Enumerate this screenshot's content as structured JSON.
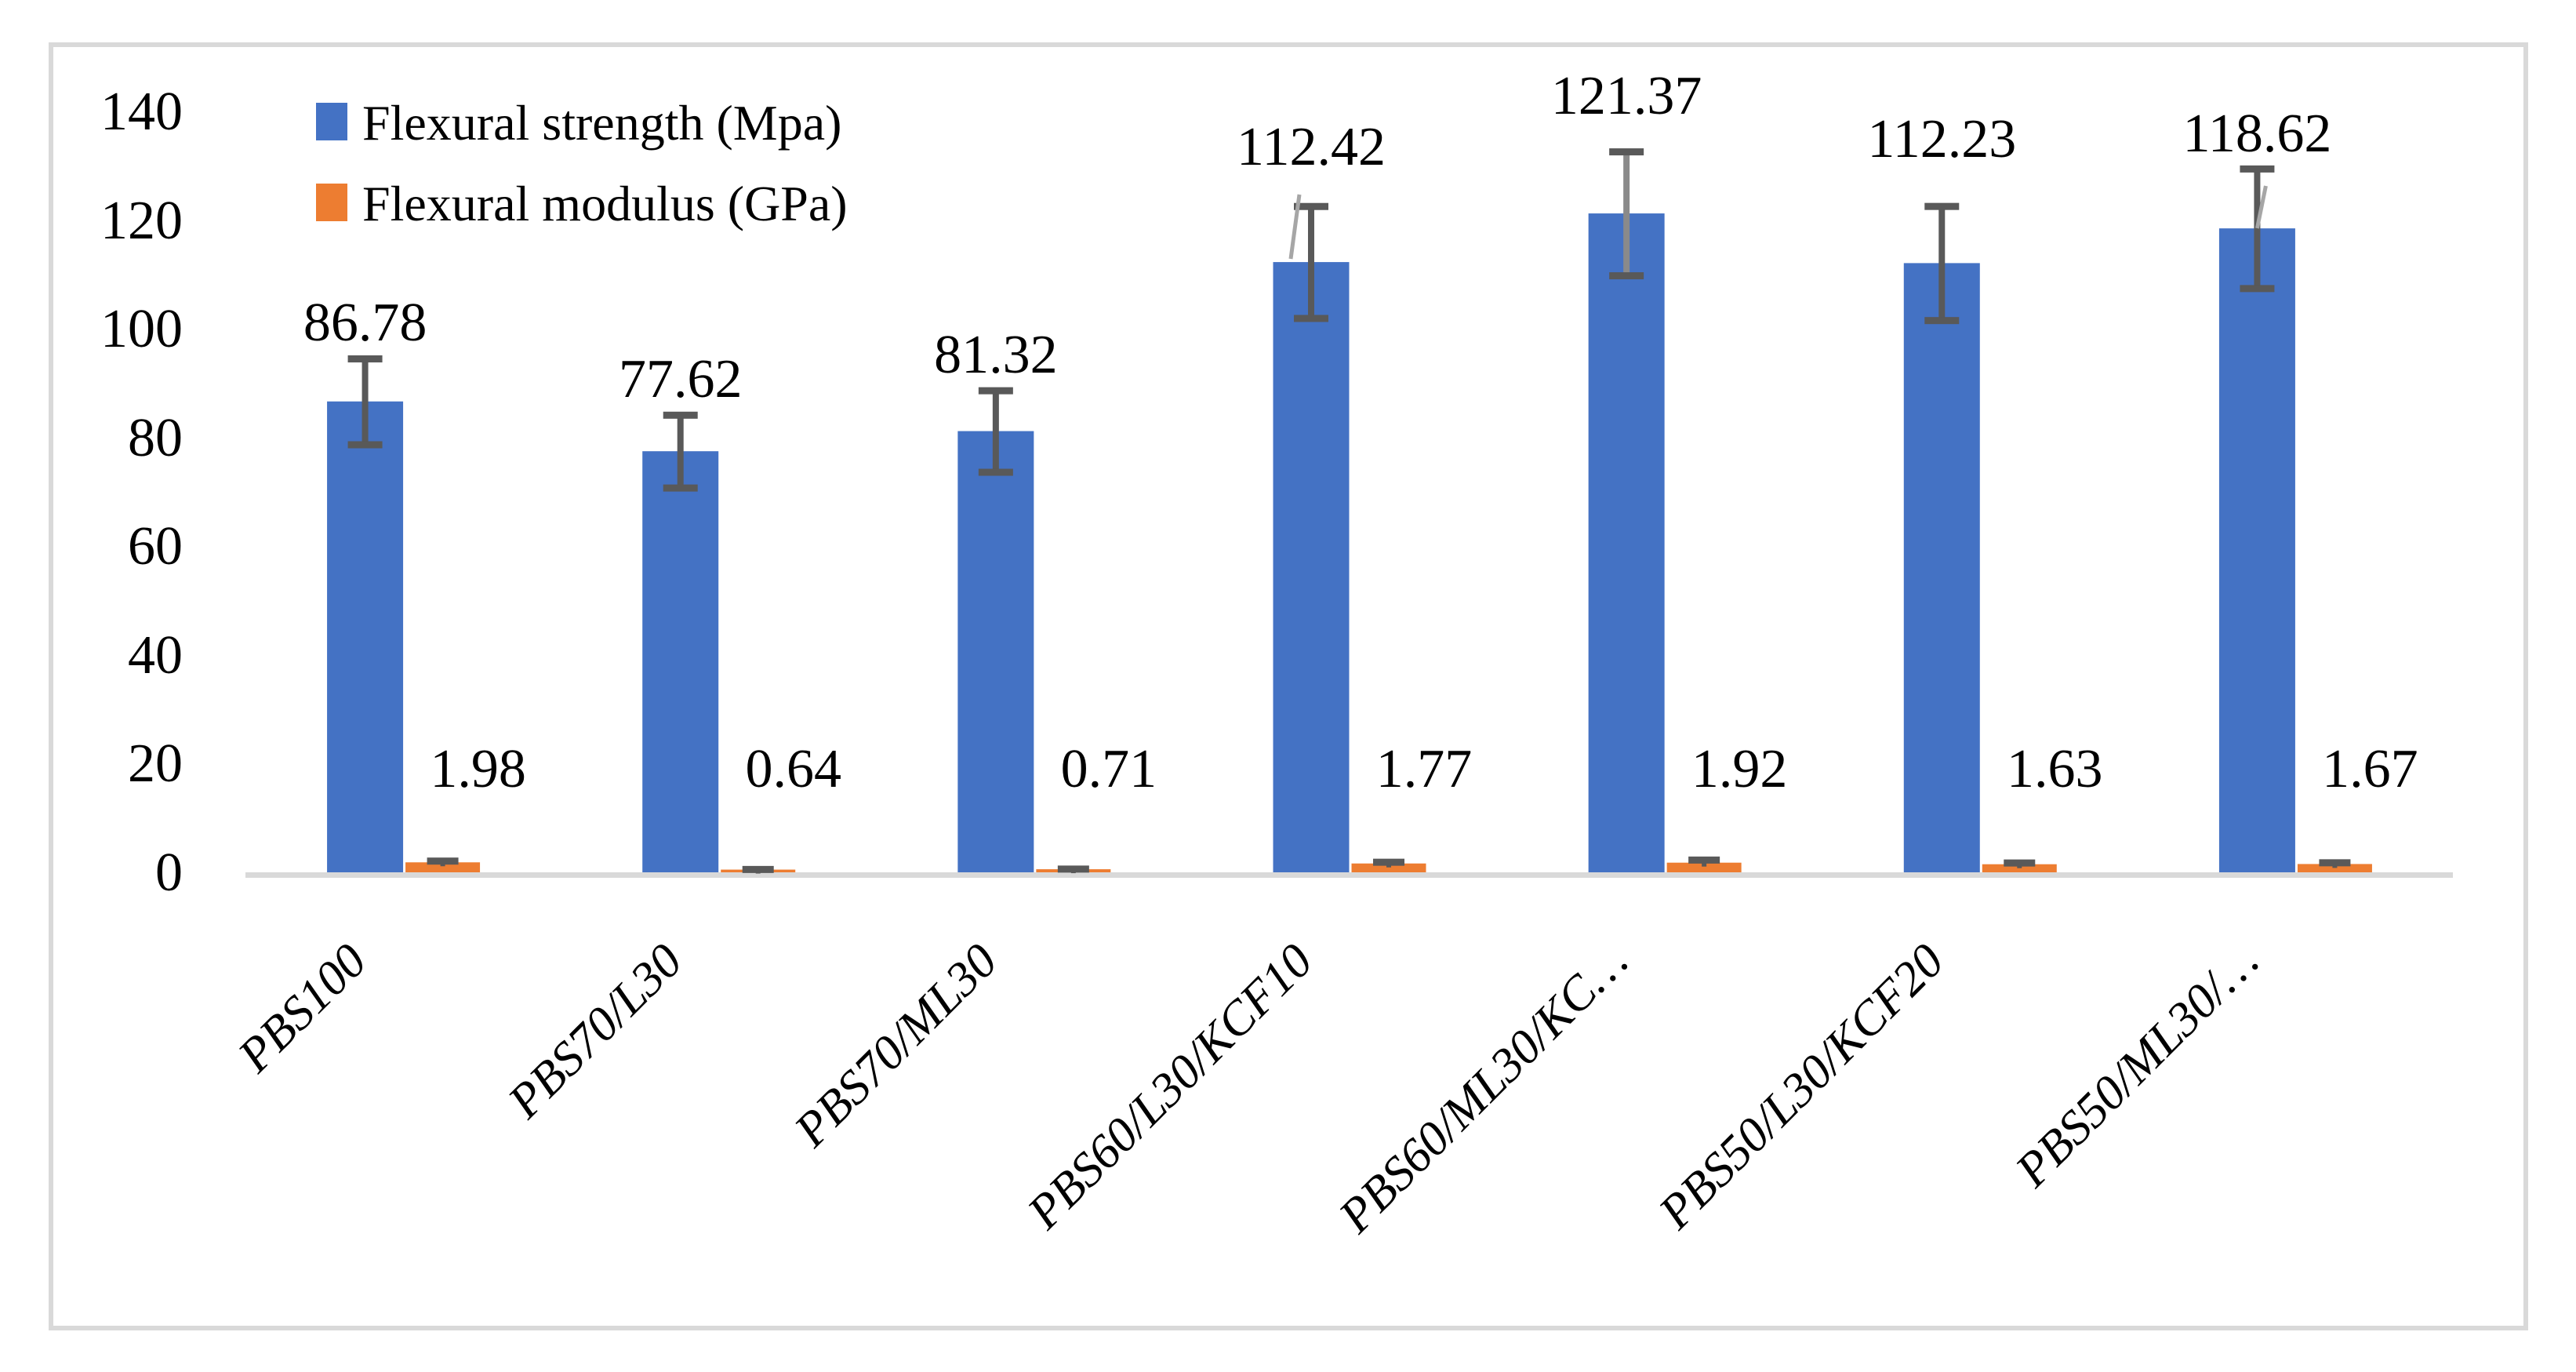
{
  "chart_data": {
    "type": "bar",
    "title": "",
    "xlabel": "",
    "ylabel": "",
    "categories": [
      "PBS100",
      "PBS70/L30",
      "PBS70/ML30",
      "PBS60/L30/KCF10",
      "PBS60/ML30/KC…",
      "PBS50/L30/KCF20",
      "PBS50/ML30/…"
    ],
    "series": [
      {
        "name": "Flexural strength (Mpa)",
        "color": "#4472C4",
        "values": [
          86.78,
          77.62,
          81.32,
          112.42,
          121.37,
          112.23,
          118.62
        ],
        "errors": [
          7.9,
          6.7,
          7.5,
          10.3,
          11.4,
          10.5,
          11.0
        ]
      },
      {
        "name": "Flexural modulus (GPa)",
        "color": "#ED7D31",
        "values": [
          1.98,
          0.64,
          0.71,
          1.77,
          1.92,
          1.63,
          1.67
        ],
        "errors": [
          0.3,
          0.1,
          0.1,
          0.3,
          0.55,
          0.3,
          0.3
        ]
      }
    ],
    "ylim": [
      0,
      140
    ],
    "yticks": [
      0,
      20,
      40,
      60,
      80,
      100,
      120,
      140
    ],
    "grid": false,
    "legend_position": "top-left",
    "error_bars": true
  },
  "colors": {
    "background": "#FFFFFF",
    "frame_border": "#D9D9D9",
    "axis_line": "#D9D9D9",
    "error_bar": "#595959",
    "leader_line": "#A6A6A6",
    "text": "#000000"
  }
}
